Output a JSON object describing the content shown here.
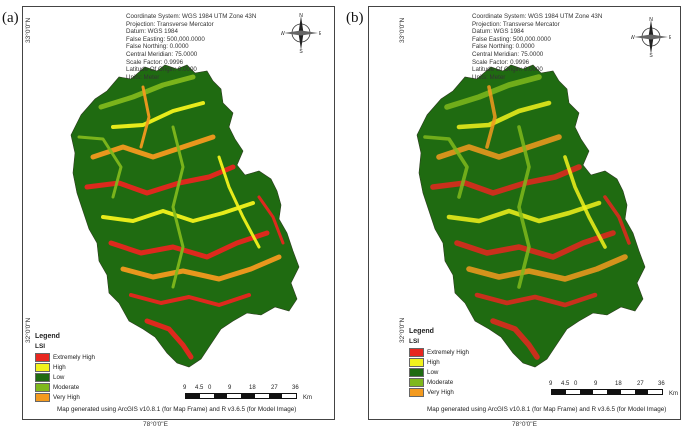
{
  "panels": [
    {
      "label": "(a)",
      "info": [
        "Coordinate System: WGS 1984 UTM Zone 43N",
        "Projection: Transverse Mercator",
        "Datum: WGS 1984",
        "False Easting: 500,000.0000",
        "False Northing: 0.0000",
        "Central Meridian: 75.0000",
        "Scale Factor: 0.9996",
        "Latitude Of Origin: 0.0000",
        "Units: Meter"
      ],
      "credit": "Map generated using ArcGIS v10.8.1 (for Map Frame) and R v3.6.5 (for Model Image)"
    },
    {
      "label": "(b)",
      "info": [
        "Coordinate System: WGS 1984 UTM Zone 43N",
        "Projection: Transverse Mercator",
        "Datum: WGS 1984",
        "False Easting: 500,000.0000",
        "False Northing: 0.0000",
        "Central Meridian: 75.0000",
        "Scale Factor: 0.9996",
        "Latitude Of Origin: 0.0000",
        "Units: Meter"
      ],
      "credit": "Map generated using ArcGIS v10.8.1 (for Map Frame) and R v3.6.5 (for Model Image)"
    }
  ],
  "graticule": {
    "lat_top": "33°0'0\"N",
    "lat_bottom": "32°0'0\"N",
    "lon": "78°0'0\"E"
  },
  "compass": {
    "n": "N",
    "s": "S",
    "e": "E",
    "w": "W"
  },
  "legend": {
    "title": "Legend",
    "subtitle": "LSI",
    "classes": [
      {
        "label": "Extremely High",
        "color": "#e8261f"
      },
      {
        "label": "High",
        "color": "#f2f21c"
      },
      {
        "label": "Low",
        "color": "#1f6b11"
      },
      {
        "label": "Moderate",
        "color": "#7fb81c"
      },
      {
        "label": "Very High",
        "color": "#f39a1f"
      }
    ]
  },
  "scale_bar": {
    "ticks": [
      "9",
      "4.5",
      "0",
      "9",
      "18",
      "27",
      "36"
    ],
    "unit": "Km"
  },
  "colors": {
    "low": "#1f6b11",
    "moderate": "#7fb81c",
    "high": "#f2f21c",
    "very_high": "#f39a1f",
    "extremely_high": "#e8261f"
  }
}
